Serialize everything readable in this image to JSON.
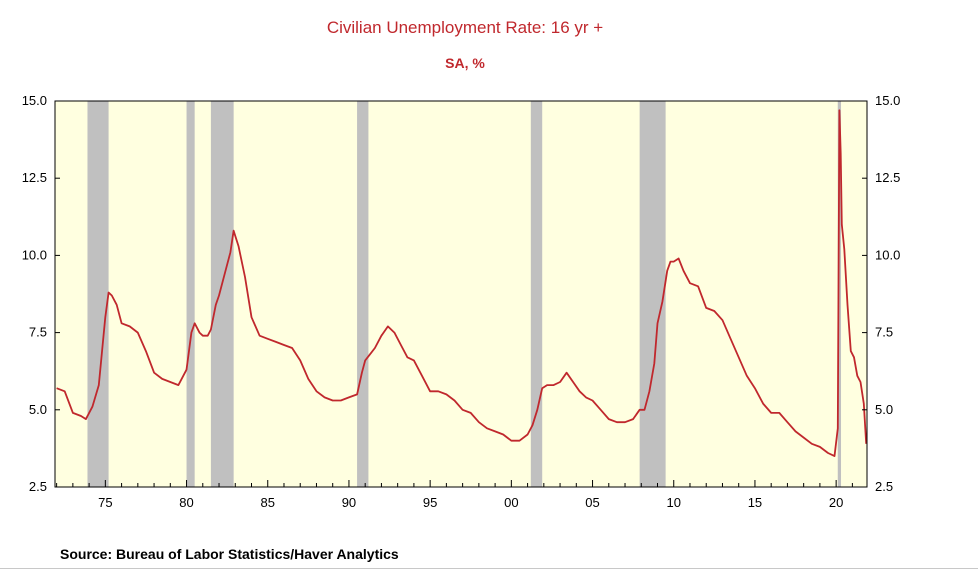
{
  "chart_data": {
    "type": "line",
    "title": "Civilian Unemployment Rate: 16 yr +",
    "subtitle": "SA, %",
    "source": "Source:  Bureau of Labor Statistics/Haver Analytics",
    "xlim": [
      1971.9,
      2021.9
    ],
    "ylim": [
      2.5,
      15.0
    ],
    "yticks": [
      "2.5",
      "5.0",
      "7.5",
      "10.0",
      "12.5",
      "15.0"
    ],
    "xticks": [
      {
        "year": 1975,
        "label": "75"
      },
      {
        "year": 1980,
        "label": "80"
      },
      {
        "year": 1985,
        "label": "85"
      },
      {
        "year": 1990,
        "label": "90"
      },
      {
        "year": 1995,
        "label": "95"
      },
      {
        "year": 2000,
        "label": "00"
      },
      {
        "year": 2005,
        "label": "05"
      },
      {
        "year": 2010,
        "label": "10"
      },
      {
        "year": 2015,
        "label": "15"
      },
      {
        "year": 2020,
        "label": "20"
      }
    ],
    "recessions": [
      [
        1973.9,
        1975.2
      ],
      [
        1980.0,
        1980.5
      ],
      [
        1981.5,
        1982.9
      ],
      [
        1990.5,
        1991.2
      ],
      [
        2001.2,
        2001.9
      ],
      [
        2007.9,
        2009.5
      ],
      [
        2020.1,
        2020.3
      ]
    ],
    "colors": {
      "background": "#ffffe0",
      "recession": "#c0c0c0",
      "line": "#c0282d",
      "text": "#c0282d"
    },
    "series": [
      {
        "x": [
          1972.0,
          1972.5,
          1973.0,
          1973.5,
          1973.8,
          1974.2,
          1974.6,
          1975.0,
          1975.2,
          1975.4,
          1975.7,
          1976.0,
          1976.5,
          1977.0,
          1977.5,
          1978.0,
          1978.5,
          1979.0,
          1979.5,
          1980.0,
          1980.3,
          1980.5,
          1980.8,
          1981.0,
          1981.3,
          1981.5,
          1981.8,
          1982.0,
          1982.4,
          1982.7,
          1982.9,
          1983.2,
          1983.6,
          1984.0,
          1984.5,
          1985.0,
          1985.5,
          1986.0,
          1986.5,
          1987.0,
          1987.5,
          1988.0,
          1988.5,
          1989.0,
          1989.5,
          1990.0,
          1990.5,
          1990.8,
          1991.0,
          1991.3,
          1991.6,
          1992.0,
          1992.4,
          1992.8,
          1993.2,
          1993.6,
          1994.0,
          1994.5,
          1995.0,
          1995.5,
          1996.0,
          1996.5,
          1997.0,
          1997.5,
          1998.0,
          1998.5,
          1999.0,
          1999.5,
          2000.0,
          2000.5,
          2001.0,
          2001.3,
          2001.6,
          2001.9,
          2002.2,
          2002.6,
          2003.0,
          2003.4,
          2003.8,
          2004.2,
          2004.6,
          2005.0,
          2005.5,
          2006.0,
          2006.5,
          2007.0,
          2007.5,
          2007.9,
          2008.2,
          2008.5,
          2008.8,
          2009.0,
          2009.3,
          2009.6,
          2009.8,
          2010.0,
          2010.3,
          2010.6,
          2011.0,
          2011.5,
          2012.0,
          2012.5,
          2013.0,
          2013.5,
          2014.0,
          2014.5,
          2015.0,
          2015.5,
          2016.0,
          2016.5,
          2017.0,
          2017.5,
          2018.0,
          2018.5,
          2019.0,
          2019.5,
          2019.9,
          2020.1,
          2020.2,
          2020.28,
          2020.35,
          2020.5,
          2020.7,
          2020.9,
          2021.1,
          2021.3,
          2021.5,
          2021.7,
          2021.85
        ],
        "values": [
          5.7,
          5.6,
          4.9,
          4.8,
          4.7,
          5.1,
          5.8,
          8.0,
          8.8,
          8.7,
          8.4,
          7.8,
          7.7,
          7.5,
          6.9,
          6.2,
          6.0,
          5.9,
          5.8,
          6.3,
          7.5,
          7.8,
          7.5,
          7.4,
          7.4,
          7.6,
          8.4,
          8.7,
          9.5,
          10.1,
          10.8,
          10.3,
          9.3,
          8.0,
          7.4,
          7.3,
          7.2,
          7.1,
          7.0,
          6.6,
          6.0,
          5.6,
          5.4,
          5.3,
          5.3,
          5.4,
          5.5,
          6.2,
          6.6,
          6.8,
          7.0,
          7.4,
          7.7,
          7.5,
          7.1,
          6.7,
          6.6,
          6.1,
          5.6,
          5.6,
          5.5,
          5.3,
          5.0,
          4.9,
          4.6,
          4.4,
          4.3,
          4.2,
          4.0,
          4.0,
          4.2,
          4.5,
          5.0,
          5.7,
          5.8,
          5.8,
          5.9,
          6.2,
          5.9,
          5.6,
          5.4,
          5.3,
          5.0,
          4.7,
          4.6,
          4.6,
          4.7,
          5.0,
          5.0,
          5.6,
          6.5,
          7.8,
          8.5,
          9.5,
          9.8,
          9.8,
          9.9,
          9.5,
          9.1,
          9.0,
          8.3,
          8.2,
          7.9,
          7.3,
          6.7,
          6.1,
          5.7,
          5.2,
          4.9,
          4.9,
          4.6,
          4.3,
          4.1,
          3.9,
          3.8,
          3.6,
          3.5,
          4.4,
          14.7,
          13.3,
          11.0,
          10.2,
          8.4,
          6.9,
          6.7,
          6.1,
          5.9,
          5.2,
          3.9
        ]
      }
    ]
  }
}
